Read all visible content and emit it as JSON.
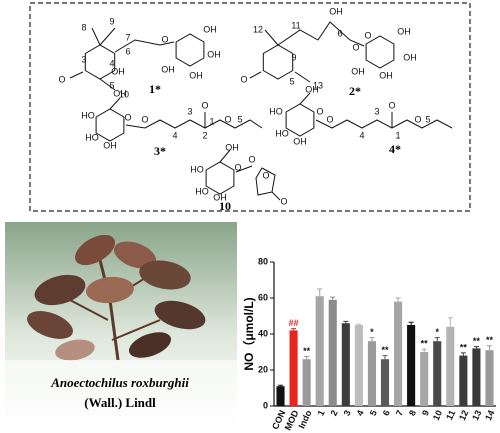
{
  "chart_data": {
    "type": "bar",
    "y_label": "NO（μmol/L)",
    "categories": [
      "CON",
      "MOD",
      "Indo",
      "1",
      "2",
      "3",
      "4",
      "5",
      "6",
      "7",
      "8",
      "9",
      "10",
      "11",
      "12",
      "13",
      "14"
    ],
    "values": [
      11,
      42,
      26,
      61,
      59,
      46,
      45,
      36,
      26,
      58,
      45,
      30,
      36,
      44,
      28,
      32,
      31
    ],
    "errors": [
      0.5,
      1,
      1.5,
      4,
      1.5,
      1,
      0.5,
      2,
      2,
      2,
      1.5,
      1.5,
      2,
      5,
      1.5,
      1,
      2.5
    ],
    "colors": [
      "#111111",
      "#e8251e",
      "#9a9a9a",
      "#a6a6a6",
      "#8c8c8c",
      "#3c3c3c",
      "#bcbcbc",
      "#9a9a9a",
      "#5a5a5a",
      "#a6a6a6",
      "#111111",
      "#a6a6a6",
      "#4a4a4a",
      "#b4b4b4",
      "#3c3c3c",
      "#3a3a3a",
      "#9a9a9a"
    ],
    "annotations": [
      null,
      "##",
      "**",
      null,
      null,
      null,
      null,
      "*",
      "**",
      null,
      null,
      "**",
      "*",
      null,
      "**",
      "**",
      "**"
    ],
    "ylim": [
      0,
      80
    ],
    "yticks": [
      0,
      20,
      40,
      60,
      80
    ]
  },
  "plant": {
    "name": "Anoectochilus roxburghii",
    "author": "(Wall.) Lindl"
  },
  "compounds": [
    {
      "label": "1*",
      "atoms": [
        "8",
        "9",
        "7",
        "6",
        "4",
        "OH",
        "5",
        "10",
        "3",
        "O",
        "O",
        "OH",
        "OH",
        "OH",
        "OH"
      ]
    },
    {
      "label": "2*",
      "atoms": [
        "12",
        "11",
        "OH",
        "6",
        "9",
        "O",
        "5",
        "13",
        "O",
        "O",
        "OH",
        "OH",
        "OH",
        "OH"
      ]
    },
    {
      "label": "3*",
      "atoms": [
        "OH",
        "HO",
        "HO",
        "O",
        "OH",
        "O",
        "4",
        "3",
        "2",
        "1",
        "O",
        "O",
        "5"
      ]
    },
    {
      "label": "4*",
      "atoms": [
        "OH",
        "HO",
        "HO",
        "O",
        "OH",
        "O",
        "4",
        "3",
        "1",
        "O",
        "O",
        "5"
      ]
    },
    {
      "label": "10",
      "atoms": [
        "OH",
        "HO",
        "HO",
        "O",
        "OH",
        "O",
        "O",
        "O"
      ]
    }
  ]
}
